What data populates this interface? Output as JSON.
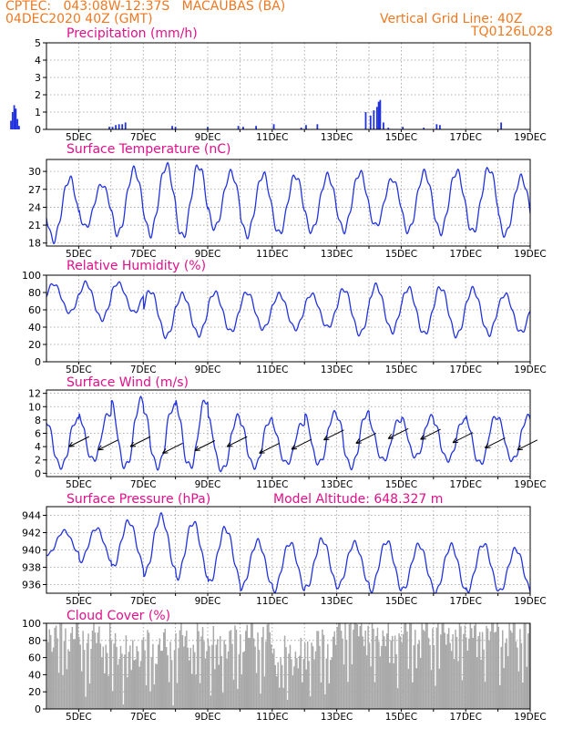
{
  "header": {
    "line1_left": "CPTEC:   043:08W-12:37S   MACAUBAS (BA)",
    "line2_left": "04DEC2020 40Z (GMT)",
    "right1": "Vertical Grid Line: 40Z",
    "right2": "TQ0126L028"
  },
  "colors": {
    "header": "#f07820",
    "title": "#e0108a",
    "series": "#2233dd",
    "bars": "#2233dd",
    "cloud": "#a9a9a9"
  },
  "chart_data": [
    {
      "id": "precip",
      "type": "bar",
      "title": "Precipitation (mm/h)",
      "x_ticks": [
        "5DEC",
        "7DEC",
        "9DEC",
        "11DEC",
        "13DEC",
        "15DEC",
        "17DEC",
        "19DEC"
      ],
      "y_ticks": [
        0,
        1,
        2,
        3,
        4,
        5
      ],
      "ylim": [
        0,
        5
      ],
      "grid": true,
      "bars": [
        [
          0.85,
          1.45
        ],
        [
          0.9,
          1.1
        ],
        [
          0.95,
          0.6
        ],
        [
          1.05,
          0.4
        ],
        [
          1.15,
          0.2
        ],
        [
          2.05,
          0.25
        ],
        [
          2.9,
          0.5
        ],
        [
          2.95,
          1.0
        ],
        [
          3.0,
          1.4
        ],
        [
          3.05,
          1.2
        ],
        [
          3.1,
          0.6
        ],
        [
          3.15,
          0.2
        ],
        [
          5.95,
          0.15
        ],
        [
          6.05,
          0.15
        ],
        [
          6.15,
          0.25
        ],
        [
          6.25,
          0.3
        ],
        [
          6.35,
          0.3
        ],
        [
          6.45,
          0.4
        ],
        [
          7.9,
          0.2
        ],
        [
          8.0,
          0.15
        ],
        [
          9.0,
          0.15
        ],
        [
          9.95,
          0.2
        ],
        [
          10.1,
          0.15
        ],
        [
          10.5,
          0.2
        ],
        [
          11.05,
          0.3
        ],
        [
          11.9,
          0.1
        ],
        [
          12.05,
          0.25
        ],
        [
          12.4,
          0.3
        ],
        [
          13.9,
          1.0
        ],
        [
          14.05,
          0.8
        ],
        [
          14.15,
          1.1
        ],
        [
          14.25,
          1.3
        ],
        [
          14.3,
          1.6
        ],
        [
          14.35,
          1.7
        ],
        [
          14.45,
          0.4
        ],
        [
          14.6,
          0.1
        ],
        [
          15.05,
          0.15
        ],
        [
          15.7,
          0.1
        ],
        [
          16.1,
          0.3
        ],
        [
          16.2,
          0.25
        ],
        [
          18.1,
          0.4
        ]
      ]
    },
    {
      "id": "temp",
      "type": "line",
      "title": "Surface Temperature (nC)",
      "x_ticks": [
        "5DEC",
        "7DEC",
        "9DEC",
        "11DEC",
        "13DEC",
        "15DEC",
        "17DEC",
        "19DEC"
      ],
      "y_ticks": [
        18,
        21,
        24,
        27,
        30
      ],
      "ylim": [
        17.5,
        32
      ],
      "grid": true,
      "daily_minmax": [
        [
          18.5,
          28.8
        ],
        [
          20.7,
          27.8
        ],
        [
          19.5,
          30.3
        ],
        [
          19.5,
          31.0
        ],
        [
          19.0,
          31.0
        ],
        [
          20.5,
          29.8
        ],
        [
          19.3,
          29.5
        ],
        [
          19.6,
          29.3
        ],
        [
          20.0,
          29.3
        ],
        [
          20.1,
          29.8
        ],
        [
          20.9,
          28.7
        ],
        [
          20.0,
          29.8
        ],
        [
          19.8,
          30.0
        ],
        [
          19.8,
          30.5
        ],
        [
          19.4,
          29.0
        ]
      ]
    },
    {
      "id": "rh",
      "type": "line",
      "title": "Relative Humidity (%)",
      "x_ticks": [
        "5DEC",
        "7DEC",
        "9DEC",
        "11DEC",
        "13DEC",
        "15DEC",
        "17DEC",
        "19DEC"
      ],
      "y_ticks": [
        0,
        20,
        40,
        60,
        80,
        100
      ],
      "ylim": [
        0,
        100
      ],
      "grid": true,
      "daily_minmax": [
        [
          57,
          90
        ],
        [
          49,
          91
        ],
        [
          57,
          91
        ],
        [
          29,
          82
        ],
        [
          31,
          78
        ],
        [
          35,
          80
        ],
        [
          38,
          80
        ],
        [
          38,
          78
        ],
        [
          40,
          78
        ],
        [
          32,
          84
        ],
        [
          35,
          88
        ],
        [
          32,
          85
        ],
        [
          30,
          86
        ],
        [
          32,
          84
        ],
        [
          34,
          78
        ]
      ]
    },
    {
      "id": "wind",
      "type": "line",
      "title": "Surface Wind (m/s)",
      "x_ticks": [
        "5DEC",
        "7DEC",
        "9DEC",
        "11DEC",
        "13DEC",
        "15DEC",
        "17DEC",
        "19DEC"
      ],
      "y_ticks": [
        0,
        2,
        4,
        6,
        8,
        10,
        12
      ],
      "ylim": [
        -0.5,
        12.5
      ],
      "grid": true,
      "daily_minmax": [
        [
          1,
          8
        ],
        [
          2,
          9
        ],
        [
          1,
          11
        ],
        [
          1,
          10
        ],
        [
          1,
          11
        ],
        [
          0.5,
          8.5
        ],
        [
          1,
          8
        ],
        [
          1.5,
          7.5
        ],
        [
          1.5,
          9
        ],
        [
          1,
          9
        ],
        [
          2,
          8
        ],
        [
          2.5,
          8.5
        ],
        [
          2,
          8
        ],
        [
          1.5,
          8.5
        ],
        [
          2,
          8.5
        ]
      ],
      "vectors": [
        [
          4.7,
          4
        ],
        [
          5.6,
          3.5
        ],
        [
          6.6,
          4
        ],
        [
          7.6,
          3
        ],
        [
          8.6,
          3.4
        ],
        [
          9.6,
          4
        ],
        [
          10.6,
          3
        ],
        [
          11.6,
          3.6
        ],
        [
          12.6,
          5
        ],
        [
          13.6,
          4.5
        ],
        [
          14.6,
          5.2
        ],
        [
          15.6,
          5.1
        ],
        [
          16.6,
          4.6
        ],
        [
          17.6,
          3.8
        ],
        [
          18.6,
          3.5
        ]
      ]
    },
    {
      "id": "pressure",
      "type": "line",
      "title": "Surface Pressure (hPa)",
      "annotation": "Model Altitude: 648.327 m",
      "x_ticks": [
        "5DEC",
        "7DEC",
        "9DEC",
        "11DEC",
        "13DEC",
        "15DEC",
        "17DEC",
        "19DEC"
      ],
      "y_ticks": [
        936,
        938,
        940,
        942,
        944
      ],
      "ylim": [
        935,
        945
      ],
      "grid": true,
      "daily_minmax": [
        [
          939.5,
          942.2
        ],
        [
          938.7,
          942.5
        ],
        [
          938.0,
          943.3
        ],
        [
          937.3,
          943.9
        ],
        [
          936.8,
          943.2
        ],
        [
          936.2,
          942.5
        ],
        [
          935.6,
          941.0
        ],
        [
          935.3,
          940.8
        ],
        [
          935.6,
          941.2
        ],
        [
          935.8,
          940.8
        ],
        [
          935.3,
          941.0
        ],
        [
          935.4,
          940.6
        ],
        [
          935.0,
          940.5
        ],
        [
          935.3,
          940.7
        ],
        [
          935.2,
          940.1
        ]
      ]
    },
    {
      "id": "cloud",
      "type": "bar",
      "title": "Cloud Cover (%)",
      "x_ticks": [
        "5DEC",
        "7DEC",
        "9DEC",
        "11DEC",
        "13DEC",
        "15DEC",
        "17DEC",
        "19DEC"
      ],
      "y_ticks": [
        0,
        20,
        40,
        60,
        80,
        100
      ],
      "ylim": [
        0,
        100
      ],
      "grid": true,
      "daily_mean": [
        88,
        82,
        70,
        72,
        80,
        78,
        85,
        62,
        75,
        97,
        85,
        92,
        90,
        92,
        91
      ]
    }
  ]
}
